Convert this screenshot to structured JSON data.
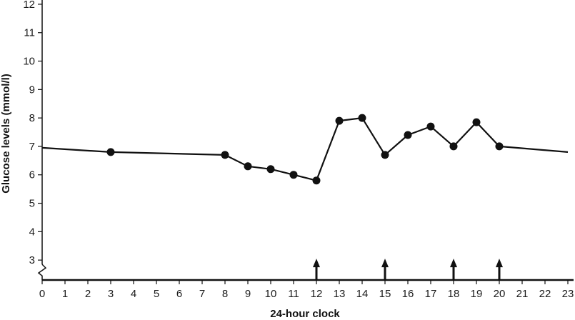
{
  "chart_data": {
    "type": "line",
    "title": "",
    "xlabel": "24-hour clock",
    "ylabel": "Glucose levels (mmol/l)",
    "xlim": [
      0,
      23
    ],
    "ylim": [
      2.3,
      12.3
    ],
    "x_ticks": [
      "0",
      "1",
      "2",
      "3",
      "4",
      "5",
      "6",
      "7",
      "8",
      "9",
      "10",
      "11",
      "12",
      "13",
      "14",
      "15",
      "16",
      "17",
      "18",
      "19",
      "20",
      "21",
      "22",
      "23"
    ],
    "y_ticks": [
      "3",
      "4",
      "5",
      "6",
      "7",
      "8",
      "9",
      "10",
      "11",
      "12"
    ],
    "y_axis_break": true,
    "grid": false,
    "line_start": {
      "x": 0,
      "y": 6.95
    },
    "line_end": {
      "x": 23,
      "y": 6.8
    },
    "points": [
      {
        "x": 3,
        "y": 6.8
      },
      {
        "x": 8,
        "y": 6.7
      },
      {
        "x": 9,
        "y": 6.3
      },
      {
        "x": 10,
        "y": 6.2
      },
      {
        "x": 11,
        "y": 6.0
      },
      {
        "x": 12,
        "y": 5.8
      },
      {
        "x": 13,
        "y": 7.9
      },
      {
        "x": 14,
        "y": 8.0
      },
      {
        "x": 15,
        "y": 6.7
      },
      {
        "x": 16,
        "y": 7.4
      },
      {
        "x": 17,
        "y": 7.7
      },
      {
        "x": 18,
        "y": 7.0
      },
      {
        "x": 19,
        "y": 7.85
      },
      {
        "x": 20,
        "y": 7.0
      }
    ],
    "arrows_at_x": [
      12,
      15,
      18,
      20
    ],
    "colors": {
      "line": "#111111",
      "marker": "#111111",
      "axis": "#111111"
    }
  }
}
